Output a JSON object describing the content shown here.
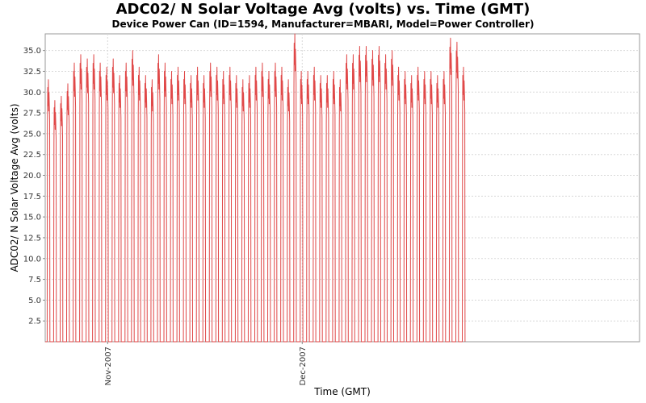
{
  "chart_data": {
    "type": "line",
    "title": "ADC02/ N Solar Voltage Avg (volts) vs. Time (GMT)",
    "subtitle": "Device Power Can (ID=1594, Manufacturer=MBARI, Model=Power Controller)",
    "xlabel": "Time (GMT)",
    "ylabel": "ADC02/ N Solar Voltage Avg (volts)",
    "ylim": [
      0,
      37
    ],
    "xlim": [
      "2007-10-22T09:00",
      "2008-01-22T00:00"
    ],
    "y_ticks": [
      "2.5",
      "5.0",
      "7.5",
      "10.0",
      "12.5",
      "15.0",
      "17.5",
      "20.0",
      "22.5",
      "25.0",
      "27.5",
      "30.0",
      "32.5",
      "35.0"
    ],
    "x_ticks": [
      {
        "label": "Nov-2007",
        "date": "2007-11-01"
      },
      {
        "label": "Dec-2007",
        "date": "2007-12-01"
      }
    ],
    "grid": true,
    "line_color": "#e04848",
    "series": [
      {
        "x_start": "2007-10-22T09:00",
        "x_step_days": 1,
        "day_peaks": [
          31.5,
          29.0,
          29.5,
          31.0,
          33.5,
          34.5,
          34.0,
          34.5,
          33.5,
          33.0,
          34.0,
          32.0,
          33.5,
          35.0,
          33.0,
          32.0,
          31.5,
          34.5,
          33.5,
          32.5,
          33.0,
          32.5,
          32.0,
          33.0,
          32.0,
          33.5,
          33.0,
          32.5,
          33.0,
          32.0,
          31.5,
          32.0,
          33.0,
          33.5,
          32.5,
          33.5,
          33.0,
          31.5,
          37.0,
          32.5,
          32.5,
          33.0,
          32.0,
          32.0,
          32.5,
          31.5,
          34.5,
          34.5,
          35.5,
          35.5,
          35.0,
          35.5,
          34.5,
          35.0,
          33.0,
          32.5,
          32.0,
          33.0,
          32.5,
          32.5,
          32.0,
          32.5,
          36.5,
          36.0,
          33.0
        ]
      }
    ]
  }
}
